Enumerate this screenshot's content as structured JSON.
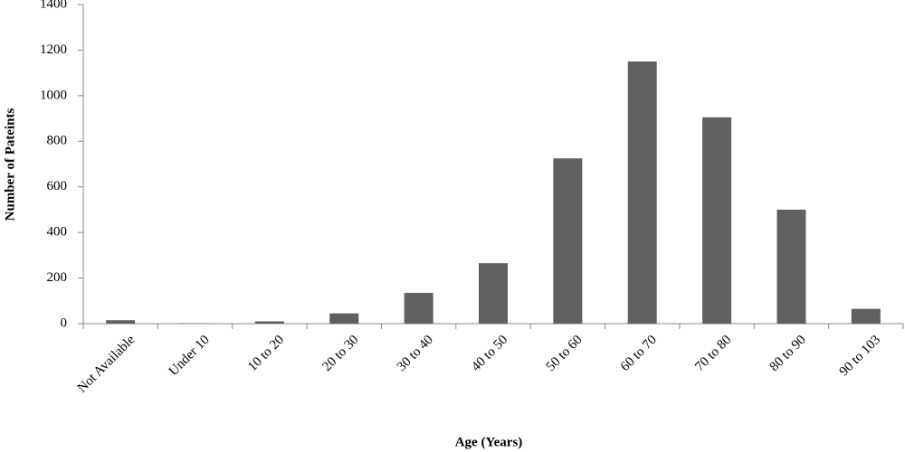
{
  "chart_data": {
    "type": "bar",
    "x_label": "Age (Years)",
    "y_label": "Number of Pateints",
    "categories": [
      "Not Available",
      "Under 10",
      "10 to 20",
      "20 to 30",
      "30 to 40",
      "40 to 50",
      "50 to 60",
      "60 to 70",
      "70 to 80",
      "80 to 90",
      "90 to 103"
    ],
    "values": [
      15,
      2,
      10,
      45,
      135,
      265,
      725,
      1150,
      905,
      500,
      65
    ],
    "color": "#606060",
    "ylim": [
      0,
      1400
    ],
    "yticks": [
      0,
      200,
      400,
      600,
      800,
      1000,
      1200,
      1400
    ],
    "grid": false
  }
}
